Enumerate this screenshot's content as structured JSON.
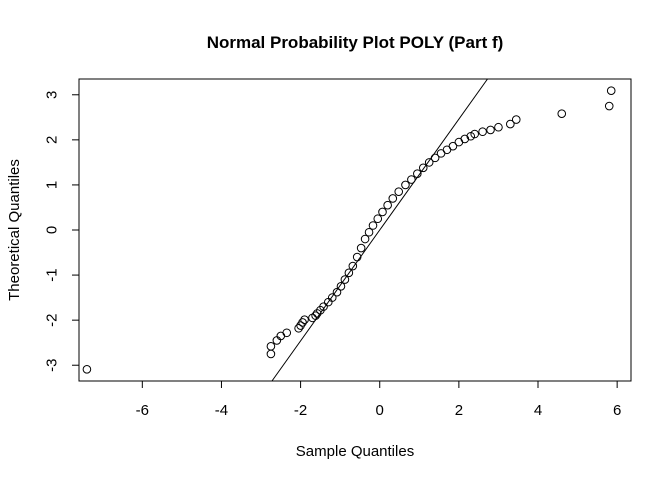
{
  "chart_data": {
    "type": "scatter",
    "title": "Normal Probability Plot POLY (Part f)",
    "xlabel": "Sample Quantiles",
    "ylabel": "Theoretical Quantiles",
    "xlim": [
      -7.6,
      6.35
    ],
    "ylim": [
      -3.35,
      3.35
    ],
    "x_ticks": [
      -6,
      -4,
      -2,
      0,
      2,
      4,
      6
    ],
    "y_ticks": [
      -3,
      -2,
      -1,
      0,
      1,
      2,
      3
    ],
    "x_tick_labels": [
      "-6",
      "-4",
      "-2",
      "0",
      "2",
      "4",
      "6"
    ],
    "y_tick_labels": [
      "-3",
      "-2",
      "-1",
      "0",
      "1",
      "2",
      "3"
    ],
    "grid": false,
    "reference_line": {
      "slope": 1.23,
      "intercept": 0.0
    },
    "points": [
      [
        -7.4,
        -3.09
      ],
      [
        -2.75,
        -2.75
      ],
      [
        -2.75,
        -2.58
      ],
      [
        -2.6,
        -2.45
      ],
      [
        -2.5,
        -2.35
      ],
      [
        -2.35,
        -2.28
      ],
      [
        -2.05,
        -2.18
      ],
      [
        -2.0,
        -2.12
      ],
      [
        -1.95,
        -2.05
      ],
      [
        -1.9,
        -1.99
      ],
      [
        -1.7,
        -1.95
      ],
      [
        -1.62,
        -1.9
      ],
      [
        -1.58,
        -1.85
      ],
      [
        -1.5,
        -1.78
      ],
      [
        -1.42,
        -1.7
      ],
      [
        -1.3,
        -1.6
      ],
      [
        -1.2,
        -1.5
      ],
      [
        -1.08,
        -1.38
      ],
      [
        -0.98,
        -1.25
      ],
      [
        -0.88,
        -1.1
      ],
      [
        -0.78,
        -0.95
      ],
      [
        -0.68,
        -0.8
      ],
      [
        -0.57,
        -0.6
      ],
      [
        -0.47,
        -0.4
      ],
      [
        -0.37,
        -0.2
      ],
      [
        -0.27,
        -0.05
      ],
      [
        -0.17,
        0.1
      ],
      [
        -0.05,
        0.25
      ],
      [
        0.07,
        0.4
      ],
      [
        0.2,
        0.55
      ],
      [
        0.33,
        0.7
      ],
      [
        0.48,
        0.85
      ],
      [
        0.65,
        1.0
      ],
      [
        0.8,
        1.12
      ],
      [
        0.95,
        1.25
      ],
      [
        1.1,
        1.38
      ],
      [
        1.25,
        1.5
      ],
      [
        1.4,
        1.6
      ],
      [
        1.55,
        1.7
      ],
      [
        1.7,
        1.78
      ],
      [
        1.85,
        1.86
      ],
      [
        2.0,
        1.95
      ],
      [
        2.15,
        2.02
      ],
      [
        2.3,
        2.08
      ],
      [
        2.4,
        2.13
      ],
      [
        2.6,
        2.18
      ],
      [
        2.8,
        2.22
      ],
      [
        3.0,
        2.28
      ],
      [
        3.3,
        2.35
      ],
      [
        3.45,
        2.45
      ],
      [
        4.6,
        2.58
      ],
      [
        5.8,
        2.75
      ],
      [
        5.85,
        3.09
      ]
    ]
  }
}
